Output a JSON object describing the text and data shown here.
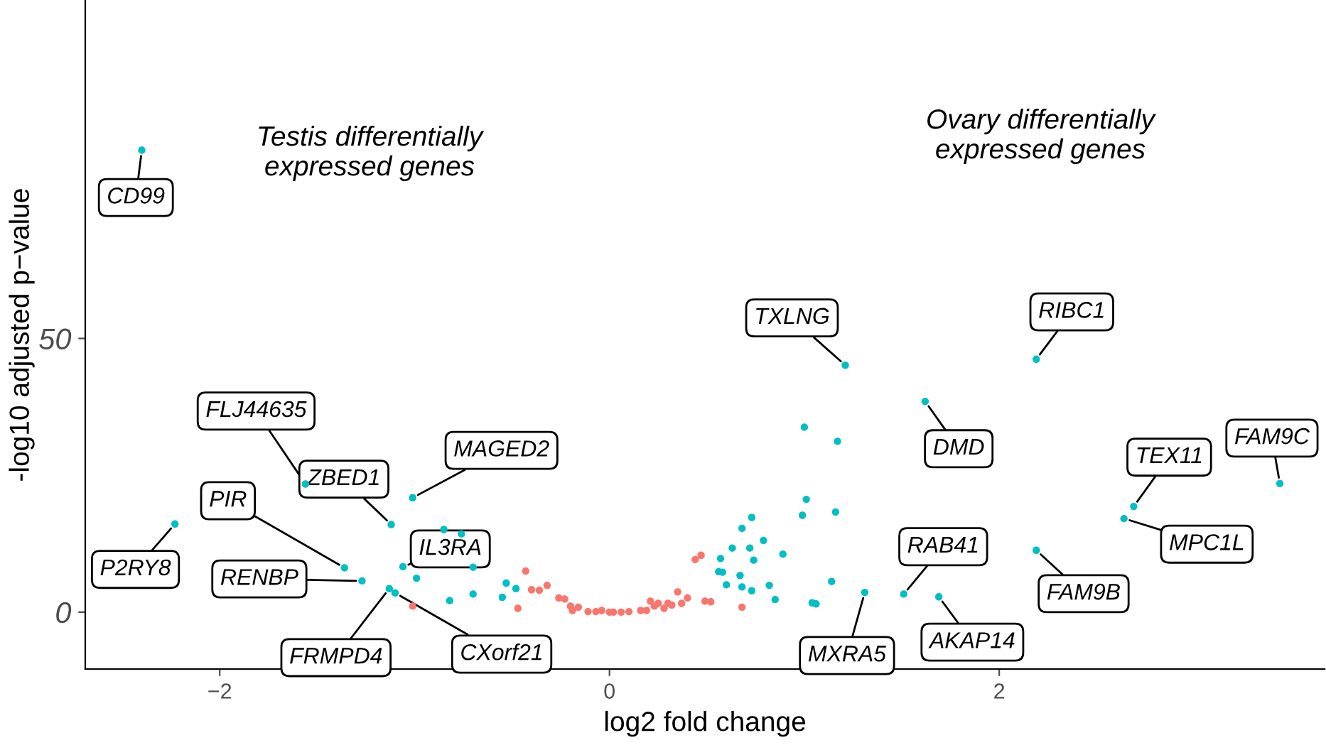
{
  "chart_data": {
    "type": "scatter",
    "xlabel": "log2 fold change",
    "ylabel": "-log10 adjusted p−value",
    "xlim": [
      -2.69,
      3.67
    ],
    "ylim": [
      -10.4,
      111.7
    ],
    "xticks": [
      {
        "value": -2,
        "label": "−2"
      },
      0,
      2
    ],
    "yticks": [
      0,
      50
    ],
    "grid": false,
    "legend": false,
    "marker": "circle",
    "series": [
      {
        "color": "#00bfc4",
        "x": [
          -2.4,
          -2.23,
          -1.56,
          -1.12,
          -1.01,
          -0.85,
          -0.76,
          -1.36,
          -1.27,
          -1.06,
          -0.7,
          -0.99,
          -1.13,
          -1.1,
          -0.82,
          -0.7,
          -0.53,
          -0.55,
          -0.48,
          0.56,
          0.58,
          0.57,
          0.6,
          0.63,
          0.67,
          0.68,
          0.68,
          0.72,
          0.73,
          0.73,
          0.74,
          0.79,
          0.82,
          0.85,
          0.89,
          0.99,
          1.0,
          1.01,
          1.04,
          1.06,
          1.14,
          1.16,
          1.17,
          1.21,
          1.31,
          2.19,
          1.62,
          3.44,
          2.69,
          2.64,
          2.19,
          1.51,
          1.69
        ],
        "values": [
          84.4,
          16.1,
          23.4,
          16.0,
          20.9,
          15.1,
          14.3,
          8.1,
          5.7,
          8.3,
          8.2,
          6.2,
          4.3,
          3.5,
          2.1,
          3.3,
          5.3,
          2.7,
          4.3,
          7.4,
          7.3,
          9.8,
          5.0,
          11.7,
          6.7,
          15.3,
          4.6,
          11.7,
          17.3,
          3.9,
          9.5,
          13.1,
          4.9,
          2.3,
          10.6,
          17.7,
          33.8,
          20.6,
          1.7,
          1.5,
          5.6,
          18.3,
          31.2,
          45.1,
          3.6,
          46.2,
          38.5,
          23.5,
          19.3,
          17.1,
          11.3,
          3.3,
          2.8
        ]
      },
      {
        "color": "#f8766d",
        "x": [
          -1.01,
          -0.47,
          -0.43,
          -0.4,
          -0.36,
          -0.32,
          -0.26,
          -0.23,
          -0.2,
          -0.19,
          -0.16,
          -0.11,
          -0.07,
          -0.04,
          0.0,
          0.02,
          0.06,
          0.1,
          0.16,
          0.19,
          0.21,
          0.23,
          0.25,
          0.28,
          0.3,
          0.32,
          0.35,
          0.37,
          0.4,
          0.44,
          0.47,
          0.49,
          0.52,
          0.68
        ],
        "values": [
          1.1,
          0.7,
          7.5,
          4.1,
          4.0,
          4.9,
          2.6,
          2.4,
          1.1,
          0.3,
          0.9,
          0.1,
          0.1,
          0.3,
          0.0,
          0.0,
          0.0,
          0.1,
          0.3,
          0.3,
          2.0,
          1.1,
          1.6,
          0.7,
          1.6,
          1.3,
          3.7,
          1.6,
          2.6,
          9.6,
          10.4,
          2.0,
          1.9,
          0.9
        ]
      }
    ],
    "annotations": [
      "Testis differentially\nexpressed genes",
      "Ovary differentially\nexpressed genes",
      {
        "text": "CD99",
        "x": -2.4,
        "y": 84.4
      },
      {
        "text": "P2RY8",
        "x": -2.23,
        "y": 16.1
      },
      {
        "text": "FLJ44635",
        "x": -1.56,
        "y": 23.4
      },
      {
        "text": "ZBED1",
        "x": -1.12,
        "y": 16.0
      },
      {
        "text": "MAGED2",
        "x": -1.01,
        "y": 20.9
      },
      {
        "text": "PIR",
        "x": -1.36,
        "y": 8.1
      },
      {
        "text": "RENBP",
        "x": -1.27,
        "y": 5.7
      },
      {
        "text": "IL3RA",
        "x": -1.06,
        "y": 8.3
      },
      {
        "text": "FRMPD4",
        "x": -1.13,
        "y": 4.3
      },
      {
        "text": "CXorf21",
        "x": -1.1,
        "y": 3.5
      },
      {
        "text": "TXLNG",
        "x": 1.21,
        "y": 45.1
      },
      {
        "text": "RIBC1",
        "x": 2.19,
        "y": 46.2
      },
      {
        "text": "DMD",
        "x": 1.62,
        "y": 38.5
      },
      {
        "text": "FAM9C",
        "x": 3.44,
        "y": 23.5
      },
      {
        "text": "TEX11",
        "x": 2.69,
        "y": 19.3
      },
      {
        "text": "MPC1L",
        "x": 2.64,
        "y": 17.1
      },
      {
        "text": "FAM9B",
        "x": 2.19,
        "y": 11.3
      },
      {
        "text": "RAB41",
        "x": 1.51,
        "y": 3.3
      },
      {
        "text": "AKAP14",
        "x": 1.69,
        "y": 2.8
      },
      {
        "text": "MXRA5",
        "x": 1.31,
        "y": 3.6
      }
    ]
  }
}
